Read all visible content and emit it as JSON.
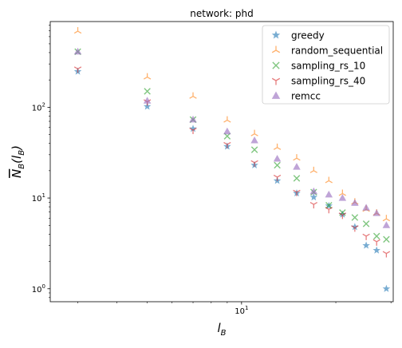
{
  "chart_data": {
    "type": "scatter",
    "title": "network: phd",
    "xlabel": "l_B",
    "ylabel": "N_B(l_B)",
    "xscale": "log",
    "yscale": "log",
    "xlim": [
      2.45,
      30.5
    ],
    "ylim": [
      0.72,
      880
    ],
    "x_ticks": [
      {
        "value": 10,
        "label": "10"
      }
    ],
    "y_ticks": [
      {
        "value": 1,
        "label": "1"
      },
      {
        "value": 10,
        "label": "1"
      },
      {
        "value": 100,
        "label": "1"
      }
    ],
    "y_tick_exponents": [
      "0",
      "1",
      "2"
    ],
    "x_tick_exponents": [
      "1"
    ],
    "tick_base": "0",
    "grid": false,
    "legend_position": "top-right",
    "x": [
      3,
      5,
      7,
      9,
      11,
      13,
      15,
      17,
      19,
      21,
      23,
      25,
      27,
      29
    ],
    "series": [
      {
        "name": "greedy",
        "marker": "star",
        "color": "#1f77b4",
        "values": [
          248,
          102,
          58,
          37,
          23,
          15.5,
          11.3,
          10.2,
          8.2,
          6.6,
          4.8,
          3.0,
          2.65,
          1.0
        ]
      },
      {
        "name": "random_sequential",
        "marker": "tri_up",
        "color": "#ff7f0e",
        "values": [
          690,
          215,
          132,
          72,
          51,
          36,
          27.5,
          20,
          15.5,
          11.2,
          9.0,
          7.5,
          6.8,
          5.9
        ]
      },
      {
        "name": "sampling_rs_10",
        "marker": "x",
        "color": "#2ca02c",
        "values": [
          410,
          150,
          73,
          48,
          34,
          23,
          16.5,
          11.6,
          8.3,
          6.9,
          6.1,
          5.2,
          3.8,
          3.5
        ]
      },
      {
        "name": "sampling_rs_40",
        "marker": "tri_down",
        "color": "#d62728",
        "values": [
          265,
          115,
          56,
          39,
          24.5,
          17,
          11.6,
          8.5,
          7.5,
          6.5,
          4.7,
          3.8,
          3.3,
          2.45
        ]
      },
      {
        "name": "remcc",
        "marker": "triangle",
        "color": "#9467bd",
        "values": [
          410,
          118,
          73,
          54,
          43,
          27,
          22,
          11.8,
          10.9,
          10.0,
          8.8,
          7.8,
          6.8,
          5.0
        ]
      }
    ]
  }
}
